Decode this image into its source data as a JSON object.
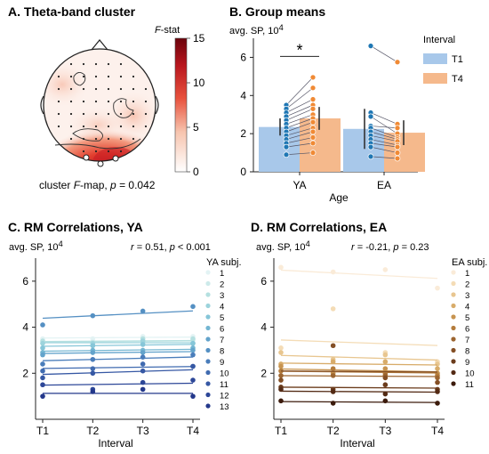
{
  "panels": {
    "a": {
      "title": "A. Theta-band cluster",
      "colorbar_label_italic": "F",
      "colorbar_label_rest": "-stat",
      "colorbar_ticks": [
        "15",
        "10",
        "5",
        "0"
      ],
      "colorbar_tick_values": [
        15,
        10,
        5,
        0
      ],
      "caption_pre": "cluster ",
      "caption_italic_F": "F",
      "caption_mid": "-map, ",
      "caption_italic_p": "p",
      "caption_post": " = 0.042",
      "colors": {
        "low": "#ffffff",
        "mid": "#e8523d",
        "high": "#7a0510"
      }
    },
    "b": {
      "title": "B. Group means",
      "ylabel": "avg. SP, 10",
      "ylabel_exp": "4",
      "xlabel": "Age",
      "significance_marker": "*",
      "legend_title": "Interval"
    },
    "c": {
      "title": "C. RM Correlations, YA",
      "ylabel": "avg. SP, 10",
      "ylabel_exp": "4",
      "stat_r": "r",
      "stat_r_val": " = 0.51, ",
      "stat_p": "p",
      "stat_p_val": " < 0.001",
      "xlabel": "Interval",
      "legend_title": "YA subj."
    },
    "d": {
      "title": "D. RM Correlations, EA",
      "ylabel": "avg. SP, 10",
      "ylabel_exp": "4",
      "stat_r": "r",
      "stat_r_val": " = -0.21, ",
      "stat_p": "p",
      "stat_p_val": " = 0.23",
      "xlabel": "Interval",
      "legend_title": "EA subj."
    }
  },
  "chart_data": [
    {
      "type": "heatmap",
      "title": "A. Theta-band cluster",
      "colorbar": {
        "label": "F-stat",
        "range": [
          0,
          15
        ],
        "ticks": [
          0,
          5,
          10,
          15
        ]
      },
      "annotation": "cluster F-map, p = 0.042"
    },
    {
      "type": "bar",
      "title": "B. Group means",
      "categories": [
        "YA",
        "EA"
      ],
      "xlabel": "Age",
      "ylabel": "avg. SP, 10^4",
      "ylim": [
        0,
        7
      ],
      "yticks": [
        0,
        2,
        4,
        6
      ],
      "series": [
        {
          "name": "T1",
          "color": "#a8c8ea",
          "values": [
            2.35,
            2.25
          ],
          "err": [
            0.45,
            1.05
          ],
          "dot_color": "#1f77b4",
          "points": [
            [
              3.5,
              3.3,
              3.1,
              2.9,
              2.7,
              2.5,
              2.3,
              2.1,
              1.9,
              1.7,
              1.5,
              1.3,
              0.9
            ],
            [
              6.6,
              3.1,
              2.9,
              2.4,
              2.3,
              2.1,
              1.9,
              1.7,
              1.5,
              1.3,
              0.8
            ]
          ]
        },
        {
          "name": "T4",
          "color": "#f5b98c",
          "values": [
            2.8,
            2.05
          ],
          "err": [
            0.6,
            0.65
          ],
          "dot_color": "#f08a35",
          "points": [
            [
              4.95,
              4.4,
              3.8,
              3.5,
              3.3,
              3.0,
              2.8,
              2.6,
              2.3,
              2.1,
              1.8,
              1.5,
              1.0
            ],
            [
              5.75,
              2.5,
              2.0,
              2.3,
              1.8,
              1.7,
              1.6,
              1.4,
              1.3,
              1.0,
              0.7
            ]
          ]
        }
      ],
      "legend": {
        "title": "Interval",
        "position": "top-right"
      },
      "significance": "*"
    },
    {
      "type": "scatter",
      "title": "C. RM Correlations, YA",
      "x": [
        "T1",
        "T2",
        "T3",
        "T4"
      ],
      "xlabel": "Interval",
      "ylabel": "avg. SP, 10^4",
      "ylim": [
        0,
        7
      ],
      "yticks": [
        2,
        4,
        6
      ],
      "stat": "r = 0.51, p < 0.001",
      "legend": {
        "title": "YA subj.",
        "position": "right"
      },
      "series": [
        {
          "name": "1",
          "color": "#e3f3f4",
          "values": [
            3.5,
            3.5,
            3.6,
            3.6
          ]
        },
        {
          "name": "2",
          "color": "#cdeaea",
          "values": [
            3.3,
            3.35,
            3.4,
            3.45
          ]
        },
        {
          "name": "3",
          "color": "#b5e0e0",
          "values": [
            3.4,
            3.2,
            3.5,
            3.5
          ]
        },
        {
          "name": "4",
          "color": "#9cd3dc",
          "values": [
            3.3,
            3.3,
            3.4,
            3.3
          ]
        },
        {
          "name": "5",
          "color": "#86c6d8",
          "values": [
            3.1,
            3.2,
            3.25,
            3.3
          ]
        },
        {
          "name": "6",
          "color": "#74b6d2",
          "values": [
            2.9,
            3.0,
            3.0,
            3.1
          ]
        },
        {
          "name": "7",
          "color": "#63a3cb",
          "values": [
            2.8,
            2.9,
            2.9,
            3.0
          ]
        },
        {
          "name": "8",
          "color": "#5590c3",
          "values": [
            4.1,
            4.5,
            4.7,
            4.9
          ]
        },
        {
          "name": "9",
          "color": "#4a7dba",
          "values": [
            2.4,
            2.6,
            2.7,
            2.8
          ]
        },
        {
          "name": "10",
          "color": "#406bb0",
          "values": [
            2.1,
            2.2,
            2.4,
            2.3
          ]
        },
        {
          "name": "11",
          "color": "#3658a4",
          "values": [
            1.8,
            2.0,
            2.1,
            2.3
          ]
        },
        {
          "name": "12",
          "color": "#2d4798",
          "values": [
            1.5,
            1.3,
            1.6,
            1.7
          ]
        },
        {
          "name": "13",
          "color": "#24388b",
          "values": [
            1.0,
            1.2,
            1.3,
            1.0
          ]
        }
      ]
    },
    {
      "type": "scatter",
      "title": "D. RM Correlations, EA",
      "x": [
        "T1",
        "T2",
        "T3",
        "T4"
      ],
      "xlabel": "Interval",
      "ylabel": "avg. SP, 10^4",
      "ylim": [
        0,
        7
      ],
      "yticks": [
        2,
        4,
        6
      ],
      "stat": "r = -0.21, p = 0.23",
      "legend": {
        "title": "EA subj.",
        "position": "right"
      },
      "series": [
        {
          "name": "1",
          "color": "#faebd8",
          "values": [
            6.6,
            6.4,
            6.5,
            5.7
          ]
        },
        {
          "name": "2",
          "color": "#f4dcb6",
          "values": [
            3.1,
            4.8,
            2.9,
            2.5
          ]
        },
        {
          "name": "3",
          "color": "#e8c690",
          "values": [
            2.9,
            2.6,
            2.8,
            2.4
          ]
        },
        {
          "name": "4",
          "color": "#d8ac6a",
          "values": [
            2.4,
            2.5,
            2.5,
            2.2
          ]
        },
        {
          "name": "5",
          "color": "#c79450",
          "values": [
            2.3,
            2.0,
            2.2,
            2.0
          ]
        },
        {
          "name": "6",
          "color": "#b47c3c",
          "values": [
            2.1,
            2.2,
            2.0,
            1.9
          ]
        },
        {
          "name": "7",
          "color": "#9c6530",
          "values": [
            1.9,
            1.9,
            1.9,
            1.8
          ]
        },
        {
          "name": "8",
          "color": "#844f25",
          "values": [
            1.7,
            3.2,
            1.8,
            1.6
          ]
        },
        {
          "name": "9",
          "color": "#6b3c1c",
          "values": [
            1.4,
            1.3,
            1.5,
            1.3
          ]
        },
        {
          "name": "10",
          "color": "#532a14",
          "values": [
            1.3,
            1.2,
            1.1,
            1.2
          ]
        },
        {
          "name": "11",
          "color": "#3c1b0c",
          "values": [
            0.8,
            0.7,
            0.8,
            0.7
          ]
        }
      ]
    }
  ]
}
